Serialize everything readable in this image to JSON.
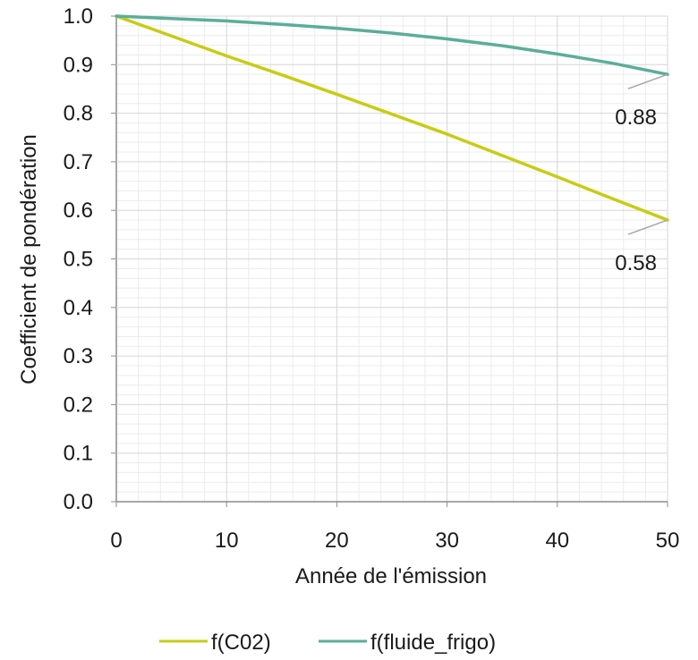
{
  "chart_data": {
    "type": "line",
    "title": "",
    "xlabel": "Année de l'émission",
    "ylabel": "Coefficient de pondération",
    "xlim": [
      0,
      50
    ],
    "ylim": [
      0.0,
      1.0
    ],
    "x_ticks": [
      "0",
      "10",
      "20",
      "30",
      "40",
      "50"
    ],
    "y_ticks": [
      "0.0",
      "0.1",
      "0.2",
      "0.3",
      "0.4",
      "0.5",
      "0.6",
      "0.7",
      "0.8",
      "0.9",
      "1.0"
    ],
    "grid": true,
    "legend_position": "bottom",
    "x": [
      0,
      5,
      10,
      15,
      20,
      25,
      30,
      35,
      40,
      45,
      50
    ],
    "series": [
      {
        "name": "f(C02)",
        "color": "#c8cc14",
        "values": [
          1.0,
          0.959,
          0.918,
          0.879,
          0.839,
          0.798,
          0.757,
          0.713,
          0.669,
          0.624,
          0.58
        ]
      },
      {
        "name": "f(fluide_frigo)",
        "color": "#5aae99",
        "values": [
          1.0,
          0.995,
          0.99,
          0.983,
          0.975,
          0.965,
          0.953,
          0.939,
          0.922,
          0.903,
          0.88
        ]
      }
    ],
    "annotations": [
      {
        "series": 1,
        "x": 50,
        "y": 0.88,
        "text": "0.88"
      },
      {
        "series": 0,
        "x": 50,
        "y": 0.58,
        "text": "0.58"
      }
    ]
  }
}
